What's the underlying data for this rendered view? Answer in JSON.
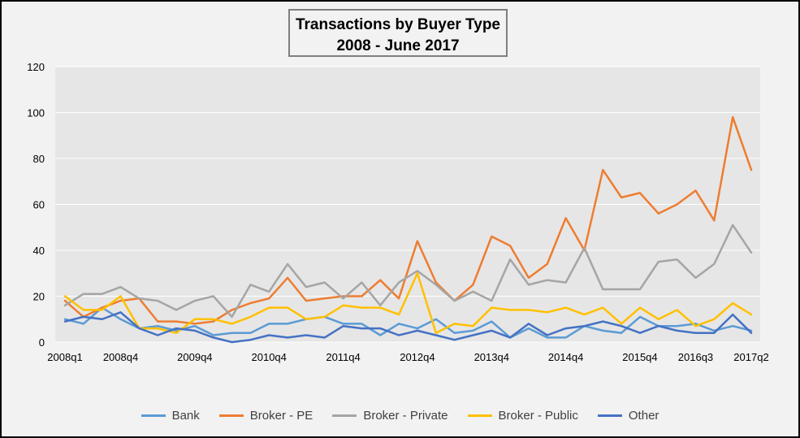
{
  "chart_data": {
    "type": "line",
    "title": "Transactions  by Buyer Type",
    "subtitle": "2008 - June 2017",
    "xlabel": "",
    "ylabel": "",
    "ylim": [
      0,
      120
    ],
    "yticks": [
      0,
      20,
      40,
      60,
      80,
      100,
      120
    ],
    "grid": true,
    "legend_position": "bottom",
    "x": [
      "2008q1",
      "2008q2",
      "2008q3",
      "2008q4",
      "2009q1",
      "2009q2",
      "2009q3",
      "2009q4",
      "2010q1",
      "2010q2",
      "2010q3",
      "2010q4",
      "2011q1",
      "2011q2",
      "2011q3",
      "2011q4",
      "2012q1",
      "2012q2",
      "2012q3",
      "2012q4",
      "2013q1",
      "2013q2",
      "2013q3",
      "2013q4",
      "2014q1",
      "2014q2",
      "2014q3",
      "2014q4",
      "2015q1",
      "2015q2",
      "2015q3",
      "2015q4",
      "2016q1",
      "2016q2",
      "2016q3",
      "2016q4",
      "2017q1",
      "2017q2"
    ],
    "x_tick_labels": [
      "2008q1",
      "2008q4",
      "2009q4",
      "2010q4",
      "2011q4",
      "2012q4",
      "2013q4",
      "2014q4",
      "2015q4",
      "2016q3",
      "2017q2"
    ],
    "series": [
      {
        "name": "Bank",
        "color": "#5b9bd5",
        "values": [
          10,
          8,
          15,
          10,
          6,
          7,
          5,
          7,
          3,
          4,
          4,
          8,
          8,
          10,
          11,
          8,
          8,
          3,
          8,
          6,
          10,
          4,
          5,
          9,
          2,
          6,
          2,
          2,
          7,
          5,
          4,
          11,
          7,
          7,
          8,
          5,
          7,
          5
        ]
      },
      {
        "name": "Broker - PE",
        "color": "#ed7d31",
        "values": [
          18,
          11,
          15,
          18,
          19,
          9,
          9,
          8,
          9,
          14,
          17,
          19,
          28,
          18,
          19,
          20,
          20,
          27,
          19,
          44,
          26,
          18,
          25,
          46,
          42,
          28,
          34,
          54,
          40,
          75,
          63,
          65,
          56,
          60,
          66,
          53,
          98,
          75
        ]
      },
      {
        "name": "Broker - Private",
        "color": "#a5a5a5",
        "values": [
          16,
          21,
          21,
          24,
          19,
          18,
          14,
          18,
          20,
          11,
          25,
          22,
          34,
          24,
          26,
          19,
          26,
          16,
          26,
          31,
          25,
          18,
          22,
          18,
          36,
          25,
          27,
          26,
          41,
          23,
          23,
          23,
          35,
          36,
          28,
          34,
          51,
          39
        ]
      },
      {
        "name": "Broker - Public",
        "color": "#ffc000",
        "values": [
          20,
          14,
          14,
          20,
          6,
          6,
          4,
          10,
          10,
          8,
          11,
          15,
          15,
          10,
          11,
          16,
          15,
          15,
          12,
          30,
          4,
          8,
          7,
          15,
          14,
          14,
          13,
          15,
          12,
          15,
          8,
          15,
          10,
          14,
          7,
          10,
          17,
          12
        ]
      },
      {
        "name": "Other",
        "color": "#4472c4",
        "values": [
          9,
          11,
          10,
          13,
          6,
          3,
          6,
          5,
          2,
          0,
          1,
          3,
          2,
          3,
          2,
          7,
          6,
          6,
          3,
          5,
          3,
          1,
          3,
          5,
          2,
          8,
          3,
          6,
          7,
          9,
          7,
          4,
          7,
          5,
          4,
          4,
          12,
          4
        ]
      }
    ]
  }
}
